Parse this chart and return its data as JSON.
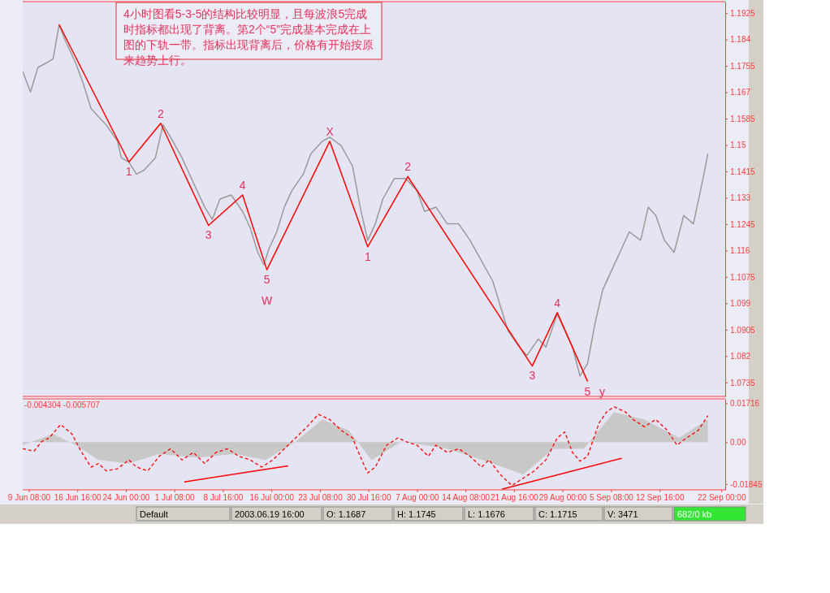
{
  "chart_data": [
    {
      "type": "line",
      "tick_labels": "y",
      "xlim": [
        "2003-06-08T10:00",
        "2003-09-22T14:00"
      ],
      "ylim": [
        1.069,
        1.1962
      ],
      "yticks": [
        1.1925,
        1.184,
        1.1755,
        1.167,
        1.1585,
        1.15,
        1.1415,
        1.133,
        1.1245,
        1.116,
        1.1075,
        1.099,
        1.0905,
        1.082,
        1.0735
      ],
      "annotations": [
        "4小时图看5-3-5的结构比较明显，且每波浪5完成时指标都出现了背离。第2个“5”完成基本完成在上图的下轨一带。指标出现背离后，价格有开始按原来趋势上行。",
        {
          "text": "1",
          "x": "2003-06-24T11:00",
          "y": 1.1445
        },
        {
          "text": "2",
          "x": "2003-06-29T06:30",
          "y": 1.157
        },
        {
          "text": "3",
          "x": "2003-07-06T11:45",
          "y": 1.1241
        },
        {
          "text": "4",
          "x": "2003-07-11T15:30",
          "y": 1.1339
        },
        {
          "text": "5",
          "x": "2003-07-15T07:30",
          "y": 1.1098
        },
        {
          "text": "W",
          "x": "2003-07-15T07:30",
          "y": 1.1098
        },
        {
          "text": "X",
          "x": "2003-07-24T19:45",
          "y": 1.1512
        },
        {
          "text": "1",
          "x": "2003-07-30T13:15",
          "y": 1.1172
        },
        {
          "text": "2",
          "x": "2003-08-05T15:00",
          "y": 1.1398
        },
        {
          "text": "3",
          "x": "2003-08-24T10:00",
          "y": 1.0788
        },
        {
          "text": "4",
          "x": "2003-08-28T04:45",
          "y": 1.096
        },
        {
          "text": "5",
          "x": "2003-09-01T18:45",
          "y": 1.0738
        },
        {
          "text": "y",
          "x": "2003-09-01T18:45",
          "y": 1.0738
        }
      ],
      "series": [
        {
          "color": "#9a9a9a",
          "x": [
            "2003-06-08T10:00",
            "2003-06-09T14:00",
            "2003-06-10T17:00",
            "2003-06-11T20:30",
            "2003-06-13T00:00",
            "2003-06-13T22:00",
            "2003-06-14T17:15",
            "2003-06-16T10:30",
            "2003-06-17T14:00",
            "2003-06-18T17:30",
            "2003-06-19T21:00",
            "2003-06-21T00:30",
            "2003-06-22T17:45",
            "2003-06-23T07:30",
            "2003-06-24T11:00",
            "2003-06-25T14:30",
            "2003-06-26T18:00",
            "2003-06-28T11:15",
            "2003-06-29T14:45",
            "2003-06-30T18:15",
            "2003-07-02T11:30",
            "2003-07-04T04:45",
            "2003-07-05T22:00",
            "2003-07-07T01:30",
            "2003-07-08T05:00",
            "2003-07-09T22:15",
            "2003-07-11T15:30",
            "2003-07-12T19:00",
            "2003-07-13T22:30",
            "2003-07-14T20:30",
            "2003-07-15T15:45",
            "2003-07-16T19:15",
            "2003-07-17T22:45",
            "2003-07-19T02:15",
            "2003-07-20T19:30",
            "2003-07-21T23:00",
            "2003-07-23T16:15",
            "2003-07-24T19:45",
            "2003-07-26T13:00",
            "2003-07-28T06:15",
            "2003-07-29T09:45",
            "2003-07-30T13:15",
            "2003-07-31T16:45",
            "2003-08-01T20:15",
            "2003-08-03T13:30",
            "2003-08-05T06:45",
            "2003-08-07T00:00",
            "2003-08-08T03:30",
            "2003-08-09T20:45",
            "2003-08-11T14:00",
            "2003-08-13T07:15",
            "2003-08-15T00:30",
            "2003-08-16T17:45",
            "2003-08-18T11:00",
            "2003-08-19T14:30",
            "2003-08-20T18:00",
            "2003-08-22T11:15",
            "2003-08-23T14:45",
            "2003-08-25T08:00",
            "2003-08-26T11:30",
            "2003-08-28T04:45",
            "2003-08-29T08:15",
            "2003-08-30T11:45",
            "2003-08-31T15:15",
            "2003-09-01T18:45",
            "2003-09-02T22:15",
            "2003-09-04T01:45",
            "2003-09-05T05:15",
            "2003-09-06T22:30",
            "2003-09-08T02:00",
            "2003-09-09T19:15",
            "2003-09-10T22:45",
            "2003-09-12T02:15",
            "2003-09-13T09:30",
            "2003-09-14T20:30",
            "2003-09-16T07:30",
            "2003-09-17T18:30",
            "2003-09-19T05:30",
            "2003-09-19T23:00"
          ],
          "values": [
            1.1737,
            1.1671,
            1.175,
            1.1763,
            1.1777,
            1.1888,
            1.1843,
            1.1763,
            1.1697,
            1.1618,
            1.1591,
            1.1565,
            1.1512,
            1.1459,
            1.1445,
            1.1406,
            1.1419,
            1.1459,
            1.1565,
            1.1525,
            1.1459,
            1.1379,
            1.13,
            1.126,
            1.1326,
            1.1339,
            1.1286,
            1.1233,
            1.1154,
            1.1114,
            1.1167,
            1.122,
            1.13,
            1.1353,
            1.1406,
            1.1472,
            1.1512,
            1.1525,
            1.1498,
            1.1432,
            1.13,
            1.1193,
            1.1246,
            1.1326,
            1.1392,
            1.1392,
            1.1353,
            1.1286,
            1.13,
            1.1246,
            1.1246,
            1.1193,
            1.1127,
            1.1061,
            1.0981,
            1.0902,
            1.0849,
            1.0822,
            1.0875,
            1.0849,
            1.0955,
            1.0902,
            1.0849,
            1.0756,
            1.0796,
            1.0928,
            1.1034,
            1.1087,
            1.1167,
            1.122,
            1.1193,
            1.13,
            1.1273,
            1.1193,
            1.1154,
            1.1273,
            1.1246,
            1.1392,
            1.1472
          ]
        },
        {
          "color": "#ff0000",
          "x": [
            "2003-06-13T22:00",
            "2003-06-24T11:00",
            "2003-06-29T06:30",
            "2003-07-06T11:45",
            "2003-07-11T15:30",
            "2003-07-15T07:30",
            "2003-07-24T19:45",
            "2003-07-30T13:15",
            "2003-08-05T15:00",
            "2003-08-24T10:00",
            "2003-08-28T04:45",
            "2003-09-01T18:45"
          ],
          "values": [
            1.1888,
            1.1445,
            1.157,
            1.1241,
            1.1339,
            1.1098,
            1.1512,
            1.1172,
            1.1398,
            1.0788,
            1.096,
            1.0738
          ]
        }
      ]
    },
    {
      "type": "line",
      "xlim": [
        "2003-06-08T10:00",
        "2003-09-22T14:00"
      ],
      "ylim": [
        -0.021,
        0.0191
      ],
      "yticks": [
        0.01716,
        {
          "value": 0,
          "label": "0.00"
        },
        -0.01845
      ],
      "xticks": [
        {
          "value": "2003-06-09T08:00",
          "label": "9 Jun 08:00"
        },
        {
          "value": "2003-06-16T16:00",
          "label": "16 Jun 16:00"
        },
        {
          "value": "2003-06-24T00:00",
          "label": "24 Jun 00:00"
        },
        {
          "value": "2003-07-01T08:00",
          "label": "1 Jul 08:00"
        },
        {
          "value": "2003-07-08T16:00",
          "label": "8 Jul 16:00"
        },
        {
          "value": "2003-07-16T00:00",
          "label": "16 Jul 00:00"
        },
        {
          "value": "2003-07-23T08:00",
          "label": "23 Jul 08:00"
        },
        {
          "value": "2003-07-30T16:00",
          "label": "30 Jul 16:00"
        },
        {
          "value": "2003-08-07T00:00",
          "label": "7 Aug 00:00"
        },
        {
          "value": "2003-08-14T08:00",
          "label": "14 Aug 08:00"
        },
        {
          "value": "2003-08-21T16:00",
          "label": "21 Aug 16:00"
        },
        {
          "value": "2003-08-29T00:00",
          "label": "29 Aug 00:00"
        },
        {
          "value": "2003-09-05T08:00",
          "label": "5 Sep 08:00"
        },
        {
          "value": "2003-09-12T16:00",
          "label": "12 Sep 16:00"
        },
        {
          "value": "2003-09-22T00:00",
          "label": "22 Sep 00:00"
        }
      ],
      "annotations": [
        "-0.004304 -0.005707",
        "Default",
        "2003.06.19 16:00",
        "O: 1.1687",
        "H: 1.1745",
        "L: 1.1676",
        "C: 1.1715",
        "V: 3471",
        "682/0 kb"
      ],
      "series": [
        {
          "type": "area",
          "color": "#c8c8c8",
          "x": [
            "2003-06-08T10:00",
            "2003-06-13T00:00",
            "2003-06-16T10:30",
            "2003-06-19T21:00",
            "2003-06-24T11:00",
            "2003-06-29T01:00",
            "2003-07-04T18:30",
            "2003-07-10T12:00",
            "2003-07-15T02:00",
            "2003-07-19T16:00",
            "2003-07-23T16:15",
            "2003-07-27T16:30",
            "2003-07-31T03:00",
            "2003-08-04T17:00",
            "2003-08-11T14:00",
            "2003-08-18T11:00",
            "2003-08-23T01:00",
            "2003-08-27T15:00",
            "2003-09-01T05:00",
            "2003-09-05T19:00",
            "2003-09-10T09:00",
            "2003-09-15T14:00",
            "2003-09-19T23:00"
          ],
          "values": [
            -0.0013,
            0.0036,
            -0.0013,
            -0.0078,
            -0.0094,
            -0.0052,
            -0.0068,
            -0.0052,
            -0.0078,
            0.0003,
            0.01,
            0.0052,
            -0.0078,
            0.0003,
            -0.0029,
            -0.0094,
            -0.0143,
            -0.0029,
            -0.0029,
            0.0133,
            0.01,
            0.0019,
            0.01
          ]
        },
        {
          "color": "#ff0000",
          "line_style": "dashed",
          "x": [
            "2003-06-08T10:00",
            "2003-06-10T03:15",
            "2003-06-11T06:45",
            "2003-06-12T10:15",
            "2003-06-14T03:30",
            "2003-06-15T20:45",
            "2003-06-17T00:15",
            "2003-06-18T17:30",
            "2003-06-19T21:00",
            "2003-06-21T00:30",
            "2003-06-22T17:45",
            "2003-06-24T11:00",
            "2003-06-25T14:30",
            "2003-06-27T07:45",
            "2003-06-29T01:00",
            "2003-06-30T18:15",
            "2003-07-02T11:30",
            "2003-07-04T04:45",
            "2003-07-05T22:00",
            "2003-07-07T15:15",
            "2003-07-09T08:30",
            "2003-07-11T01:45",
            "2003-07-12T19:00",
            "2003-07-14T12:15",
            "2003-07-16T05:30",
            "2003-07-17T22:45",
            "2003-07-19T16:00",
            "2003-07-21T09:15",
            "2003-07-23T02:30",
            "2003-07-24T19:45",
            "2003-07-26T13:00",
            "2003-07-28T06:15",
            "2003-07-29T09:45",
            "2003-07-30T13:15",
            "2003-07-31T16:45",
            "2003-08-02T10:00",
            "2003-08-04T03:15",
            "2003-08-05T06:45",
            "2003-08-07T00:00",
            "2003-08-08T17:15",
            "2003-08-09T20:45",
            "2003-08-11T14:00",
            "2003-08-13T07:15",
            "2003-08-15T00:30",
            "2003-08-16T17:45",
            "2003-08-17T21:15",
            "2003-08-19T14:30",
            "2003-08-21T07:45",
            "2003-08-23T01:00",
            "2003-08-24T18:15",
            "2003-08-26T11:30",
            "2003-08-28T04:45",
            "2003-08-29T08:15",
            "2003-08-30T11:45",
            "2003-08-31T15:15",
            "2003-09-01T18:45",
            "2003-09-03T12:00",
            "2003-09-04T15:30",
            "2003-09-05T19:00",
            "2003-09-07T12:15",
            "2003-09-08T15:45",
            "2003-09-10T09:00",
            "2003-09-12T02:15",
            "2003-09-13T20:00",
            "2003-09-15T07:00",
            "2003-09-16T18:00",
            "2003-09-18T12:00",
            "2003-09-19T23:00"
          ],
          "values": [
            -0.0029,
            -0.0039,
            0.0003,
            0.0019,
            0.0078,
            0.0036,
            -0.0029,
            -0.011,
            -0.0094,
            -0.0126,
            -0.0117,
            -0.0078,
            -0.011,
            -0.0126,
            -0.0062,
            -0.0029,
            -0.0078,
            -0.0045,
            -0.0094,
            -0.0045,
            -0.0029,
            -0.0062,
            -0.0078,
            -0.011,
            -0.0078,
            -0.0029,
            0.0019,
            0.0068,
            0.0123,
            0.01,
            0.0052,
            0.0019,
            -0.0062,
            -0.0136,
            -0.011,
            -0.0013,
            0.0019,
            0.0003,
            -0.0013,
            -0.0062,
            -0.0013,
            -0.0045,
            -0.0029,
            -0.0062,
            -0.011,
            -0.0078,
            -0.0143,
            -0.0191,
            -0.0159,
            -0.0126,
            -0.0078,
            0.0019,
            0.0045,
            -0.0045,
            -0.0084,
            -0.0062,
            0.0084,
            0.0133,
            0.0156,
            0.0133,
            0.01,
            0.0068,
            0.01,
            0.0052,
            -0.0013,
            0.0019,
            0.0052,
            0.0117
          ]
        },
        {
          "color": "#ff0000",
          "line_style": "solid",
          "x": [
            "2003-07-02T19:45",
            "2003-07-18T12:30"
          ],
          "values": [
            -0.0175,
            -0.0104
          ]
        },
        {
          "color": "#ff0000",
          "line_style": "solid",
          "x": [
            "2003-08-19T20:00",
            "2003-09-06T22:30"
          ],
          "values": [
            -0.0207,
            -0.0071
          ]
        }
      ]
    }
  ]
}
